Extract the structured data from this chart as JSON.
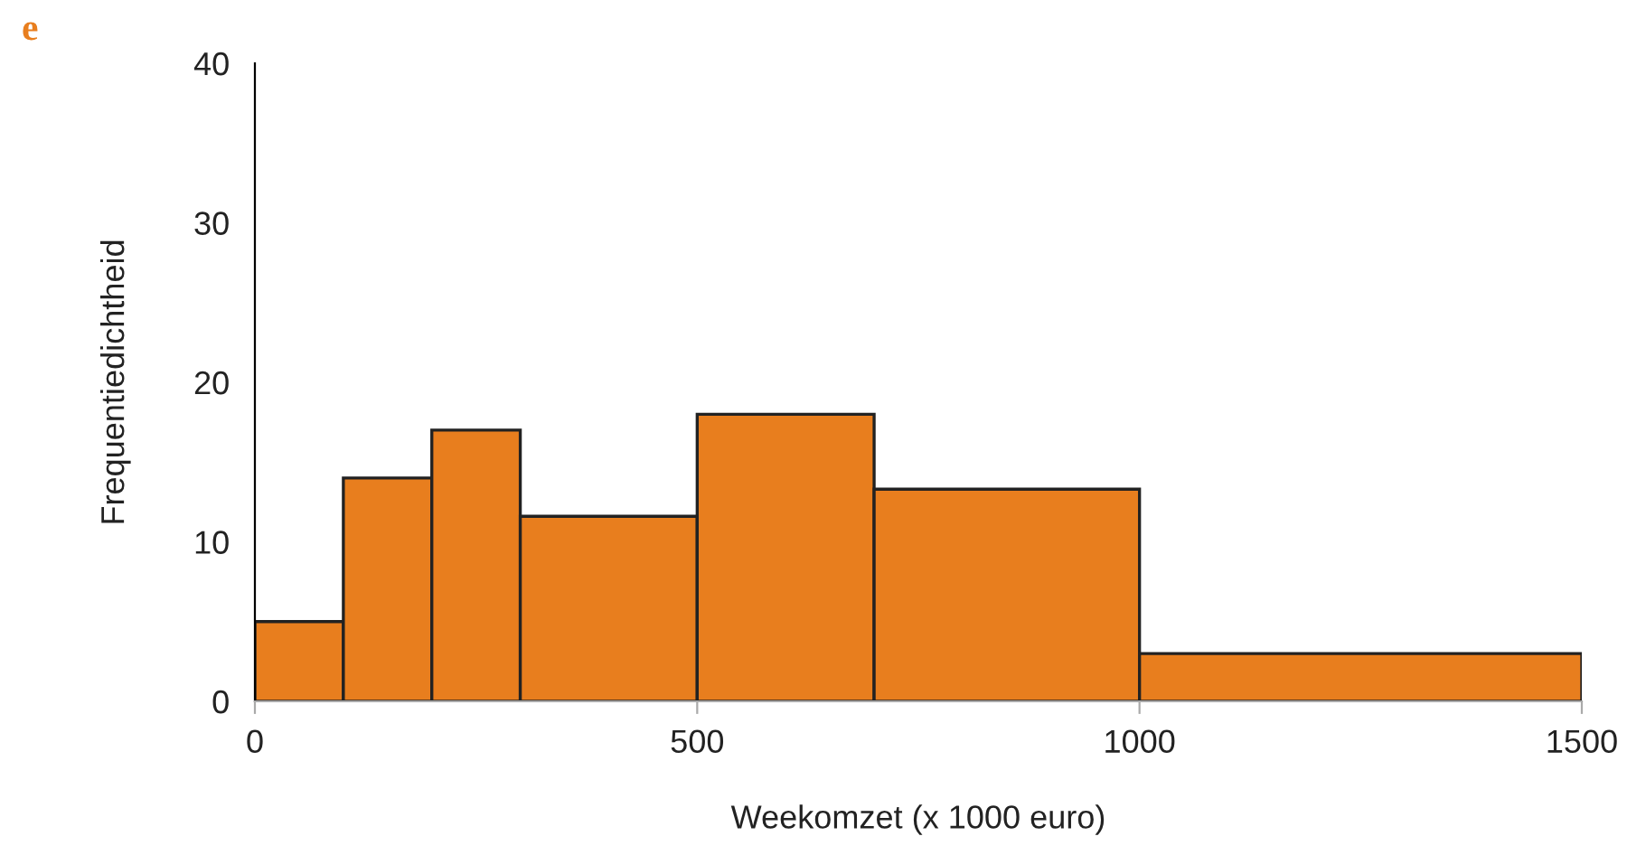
{
  "chart_data": {
    "type": "histogram",
    "title": "e",
    "xlabel": "Weekomzet (x 1000 euro)",
    "ylabel": "Frequentiedichtheid",
    "bins": [
      0,
      100,
      200,
      300,
      500,
      700,
      1000,
      1500
    ],
    "values": [
      5,
      14,
      17,
      11.6,
      18,
      13.3,
      3
    ],
    "color": "#e87e1e",
    "xlim": [
      0,
      1500
    ],
    "xticks": [
      0,
      500,
      1000,
      1500
    ],
    "ylim": [
      0,
      40
    ],
    "yticks": [
      0,
      10,
      20,
      30,
      40
    ],
    "grid": false
  }
}
